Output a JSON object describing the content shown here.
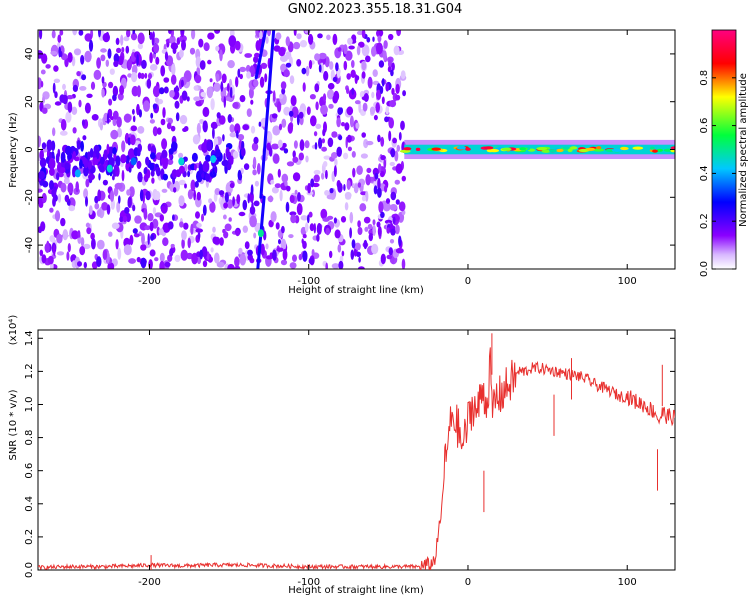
{
  "title": "GN02.2023.355.18.31.G04",
  "colors": {
    "line": "#e8302e",
    "colormap": [
      "#8a00ff",
      "#0000ff",
      "#00c8ff",
      "#00ff3c",
      "#ffff00",
      "#ff0000",
      "#ff0080"
    ]
  },
  "chart_data": [
    {
      "type": "heatmap",
      "xlabel": "Height of straight line (km)",
      "ylabel": "Frequency (Hz)",
      "xlim": [
        -270,
        130
      ],
      "ylim": [
        -50,
        50
      ],
      "xticks": [
        -200,
        -100,
        0,
        100
      ],
      "xtick_labels": [
        "-200",
        "-100",
        "0",
        "100"
      ],
      "yticks": [
        -40,
        -20,
        0,
        20,
        40
      ],
      "ytick_labels": [
        "-40",
        "-20",
        "0",
        "20",
        "40"
      ],
      "colorbar": {
        "label": "Normalized spectral amplitude",
        "range": [
          0.0,
          1.0
        ],
        "ticks": [
          0.0,
          0.2,
          0.4,
          0.6,
          0.8
        ],
        "tick_labels": [
          "0.0",
          "0.2",
          "0.4",
          "0.6",
          "0.8"
        ]
      },
      "noise_region_x": [
        -270,
        -40
      ],
      "signal_band": {
        "x": [
          -40,
          130
        ],
        "frequency_hz": [
          -2,
          2
        ],
        "typical_amplitude": 0.45,
        "peak_amplitude": 0.95
      },
      "clusters": [
        {
          "x": -245,
          "y": -10,
          "amplitude": 0.25
        },
        {
          "x": -225,
          "y": -8,
          "amplitude": 0.3
        },
        {
          "x": -210,
          "y": -5,
          "amplitude": 0.2
        },
        {
          "x": -180,
          "y": -5,
          "amplitude": 0.3
        },
        {
          "x": -160,
          "y": -4,
          "amplitude": 0.28
        },
        {
          "x": -130,
          "y": -35,
          "amplitude": 0.35
        }
      ],
      "streaks": [
        {
          "x": [
            -132,
            -128
          ],
          "y": [
            -50,
            -20
          ],
          "amplitude": 0.2
        },
        {
          "x": [
            -130,
            -122
          ],
          "y": [
            -20,
            50
          ],
          "amplitude": 0.2
        },
        {
          "x": [
            -133,
            -127
          ],
          "y": [
            30,
            50
          ],
          "amplitude": 0.2
        }
      ]
    },
    {
      "type": "line",
      "xlabel": "Height of straight line (km)",
      "ylabel": "SNR (10 * v/v)",
      "y_multiplier": "(x10⁴)",
      "xlim": [
        -270,
        130
      ],
      "ylim": [
        0,
        1.45
      ],
      "xticks": [
        -200,
        -100,
        0,
        100
      ],
      "xtick_labels": [
        "-200",
        "-100",
        "0",
        "100"
      ],
      "yticks": [
        0.0,
        0.2,
        0.4,
        0.6,
        0.8,
        1.0,
        1.2,
        1.4
      ],
      "ytick_labels": [
        "0.0",
        "0.2",
        "0.4",
        "0.6",
        "0.8",
        "1.0",
        "1.2",
        "1.4"
      ],
      "series": [
        {
          "x": [
            -270,
            -250,
            -230,
            -210,
            -200,
            -180,
            -160,
            -140,
            -120,
            -100,
            -80,
            -60,
            -40,
            -30,
            -23,
            -20,
            -19,
            -17,
            -15,
            -12,
            -10,
            -8,
            -6,
            -4,
            -2,
            0,
            3,
            6,
            9,
            12,
            14,
            15,
            18,
            20,
            24,
            28,
            32,
            36,
            40,
            45,
            50,
            55,
            60,
            65,
            70,
            75,
            80,
            85,
            90,
            95,
            100,
            105,
            110,
            115,
            118,
            120,
            122,
            125,
            130
          ],
          "y": [
            0.015,
            0.02,
            0.02,
            0.025,
            0.03,
            0.025,
            0.03,
            0.03,
            0.025,
            0.02,
            0.02,
            0.02,
            0.02,
            0.02,
            0.03,
            0.09,
            0.2,
            0.3,
            0.6,
            0.8,
            0.95,
            0.9,
            0.85,
            0.75,
            0.8,
            0.9,
            1.0,
            0.95,
            1.1,
            1.0,
            1.25,
            0.95,
            1.05,
            1.05,
            1.1,
            1.15,
            1.2,
            1.2,
            1.22,
            1.22,
            1.21,
            1.2,
            1.19,
            1.18,
            1.17,
            1.15,
            1.12,
            1.1,
            1.08,
            1.05,
            1.05,
            1.02,
            1.0,
            0.97,
            0.95,
            0.9,
            0.95,
            0.93,
            0.92
          ]
        }
      ],
      "spikes": [
        {
          "x": -199,
          "y": 0.09
        },
        {
          "x": 15,
          "y": 1.43
        },
        {
          "x": 10,
          "y": 0.6
        },
        {
          "x": 54,
          "y": 1.06
        },
        {
          "x": 65,
          "y": 1.28
        },
        {
          "x": 119,
          "y": 0.73
        },
        {
          "x": 122,
          "y": 1.24
        }
      ]
    }
  ]
}
